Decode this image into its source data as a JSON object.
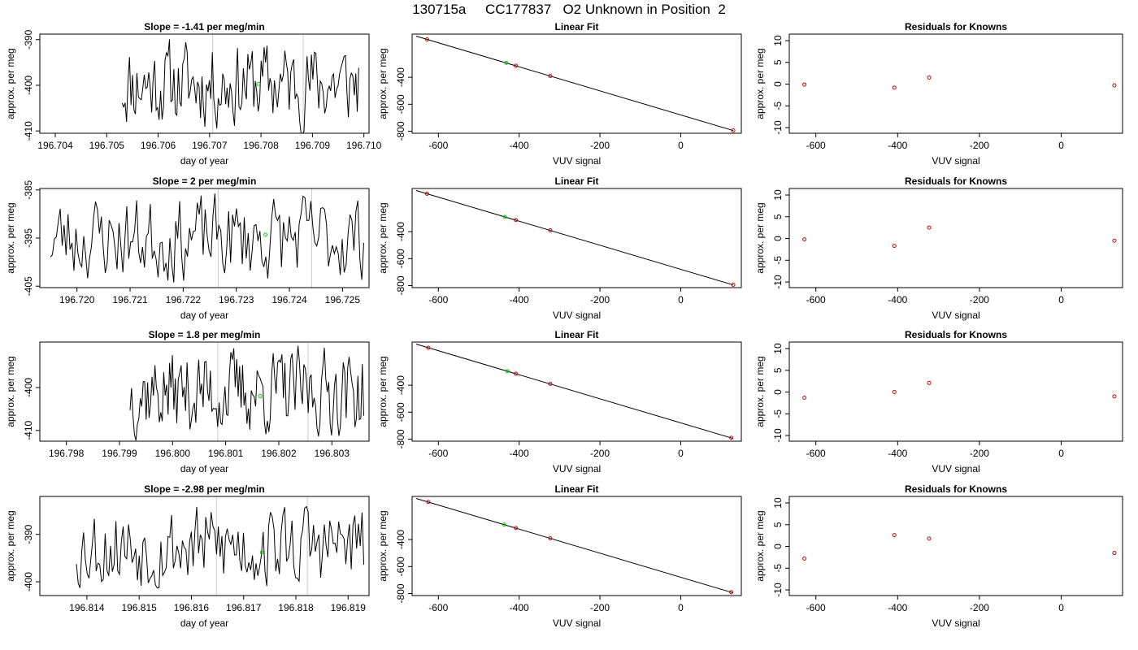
{
  "page": {
    "title": "130715a     CC177837   O2 Unknown in Position  2"
  },
  "colors": {
    "trace": "#000000",
    "unknown_point": "#00cc00",
    "known_point": "#cc0000",
    "marker_line": "#cccccc",
    "fit_line": "#000000"
  },
  "chart_data": [
    {
      "type": "line",
      "title": "Slope =  -1.41  per meg/min",
      "xlabel": "day of year",
      "ylabel": "approx. per meg",
      "xlim": [
        196.7037,
        196.7101
      ],
      "ylim": [
        -410.5,
        -388.8
      ],
      "xticks": [
        196.704,
        196.705,
        196.706,
        196.707,
        196.708,
        196.709,
        196.71
      ],
      "xtick_labels": [
        "196.704",
        "196.705",
        "196.706",
        "196.707",
        "196.708",
        "196.709",
        "196.710"
      ],
      "yticks": [
        -390,
        -400,
        -410
      ],
      "ytick_labels": [
        "-390",
        "-400",
        "-410"
      ],
      "vlines": [
        196.70706,
        196.70882
      ],
      "trace_start": 196.7053,
      "trace_end": 196.7099,
      "seed": 11,
      "unknown_point": {
        "x": 196.70795,
        "y": -399.7
      }
    },
    {
      "type": "scatter",
      "title": "Linear Fit",
      "xlabel": "VUV signal",
      "ylabel": "approx. per meg",
      "xlim": [
        -665,
        150
      ],
      "ylim": [
        -815,
        -80
      ],
      "xticks": [
        -600,
        -400,
        -200,
        0
      ],
      "xtick_labels": [
        "-600",
        "-400",
        "-200",
        "0"
      ],
      "yticks": [
        -400,
        -600,
        -800
      ],
      "ytick_labels": [
        "-400",
        "-600",
        "-800"
      ],
      "fit_line": [
        [
          -655,
          -95
        ],
        [
          130,
          -795
        ]
      ],
      "known_points": [
        {
          "x": -628,
          "y": -119
        },
        {
          "x": -408,
          "y": -314
        },
        {
          "x": -323,
          "y": -390
        },
        {
          "x": 130,
          "y": -794
        }
      ],
      "unknown_point": {
        "x": -432,
        "y": -293
      }
    },
    {
      "type": "scatter",
      "title": "Residuals for Knowns",
      "xlabel": "VUV signal",
      "ylabel": "approx. per meg",
      "xlim": [
        -665,
        150
      ],
      "ylim": [
        -11.3,
        11.5
      ],
      "xticks": [
        -600,
        -400,
        -200,
        0
      ],
      "xtick_labels": [
        "-600",
        "-400",
        "-200",
        "0"
      ],
      "yticks": [
        10,
        5,
        0,
        -5,
        -10
      ],
      "ytick_labels": [
        "10",
        "5",
        "0",
        "-5",
        "-10"
      ],
      "known_points": [
        {
          "x": -628,
          "y": -0.1
        },
        {
          "x": -408,
          "y": -0.8
        },
        {
          "x": -323,
          "y": 1.5
        },
        {
          "x": 130,
          "y": -0.3
        }
      ]
    },
    {
      "type": "line",
      "title": "Slope =  2  per meg/min",
      "xlabel": "day of year",
      "ylabel": "approx. per meg",
      "xlim": [
        196.7193,
        196.7255
      ],
      "ylim": [
        -405.3,
        -384.7
      ],
      "xticks": [
        196.72,
        196.721,
        196.722,
        196.723,
        196.724,
        196.725
      ],
      "xtick_labels": [
        "196.720",
        "196.721",
        "196.722",
        "196.723",
        "196.724",
        "196.725"
      ],
      "yticks": [
        -385,
        -395,
        -405
      ],
      "ytick_labels": [
        "-385",
        "-395",
        "-405"
      ],
      "vlines": [
        196.72266,
        196.72442
      ],
      "trace_start": 196.7195,
      "trace_end": 196.7254,
      "seed": 23,
      "unknown_point": {
        "x": 196.72355,
        "y": -394.3
      }
    },
    {
      "type": "scatter",
      "title": "Linear Fit",
      "xlabel": "VUV signal",
      "ylabel": "approx. per meg",
      "xlim": [
        -665,
        150
      ],
      "ylim": [
        -815,
        -80
      ],
      "xticks": [
        -600,
        -400,
        -200,
        0
      ],
      "xtick_labels": [
        "-600",
        "-400",
        "-200",
        "0"
      ],
      "yticks": [
        -400,
        -600,
        -800
      ],
      "ytick_labels": [
        "-400",
        "-600",
        "-800"
      ],
      "fit_line": [
        [
          -655,
          -95
        ],
        [
          130,
          -795
        ]
      ],
      "known_points": [
        {
          "x": -628,
          "y": -119
        },
        {
          "x": -408,
          "y": -314
        },
        {
          "x": -323,
          "y": -390
        },
        {
          "x": 130,
          "y": -794
        }
      ],
      "unknown_point": {
        "x": -435,
        "y": -291
      }
    },
    {
      "type": "scatter",
      "title": "Residuals for Knowns",
      "xlabel": "VUV signal",
      "ylabel": "approx. per meg",
      "xlim": [
        -665,
        150
      ],
      "ylim": [
        -11.3,
        11.5
      ],
      "xticks": [
        -600,
        -400,
        -200,
        0
      ],
      "xtick_labels": [
        "-600",
        "-400",
        "-200",
        "0"
      ],
      "yticks": [
        10,
        5,
        0,
        -5,
        -10
      ],
      "ytick_labels": [
        "10",
        "5",
        "0",
        "-5",
        "-10"
      ],
      "known_points": [
        {
          "x": -628,
          "y": -0.2
        },
        {
          "x": -408,
          "y": -1.7
        },
        {
          "x": -323,
          "y": 2.5
        },
        {
          "x": 130,
          "y": -0.5
        }
      ]
    },
    {
      "type": "line",
      "title": "Slope =  1.8  per meg/min",
      "xlabel": "day of year",
      "ylabel": "approx. per meg",
      "xlim": [
        196.7975,
        196.8037
      ],
      "ylim": [
        -412.5,
        -389.4
      ],
      "xticks": [
        196.798,
        196.799,
        196.8,
        196.801,
        196.802,
        196.803
      ],
      "xtick_labels": [
        "196.798",
        "196.799",
        "196.800",
        "196.801",
        "196.802",
        "196.803"
      ],
      "yticks": [
        -400,
        -410
      ],
      "ytick_labels": [
        "-400",
        "-410"
      ],
      "vlines": [
        196.80085,
        196.80255
      ],
      "trace_start": 196.7992,
      "trace_end": 196.8036,
      "seed": 37,
      "unknown_point": {
        "x": 196.80165,
        "y": -402.0
      }
    },
    {
      "type": "scatter",
      "title": "Linear Fit",
      "xlabel": "VUV signal",
      "ylabel": "approx. per meg",
      "xlim": [
        -665,
        150
      ],
      "ylim": [
        -815,
        -80
      ],
      "xticks": [
        -600,
        -400,
        -200,
        0
      ],
      "xtick_labels": [
        "-600",
        "-400",
        "-200",
        "0"
      ],
      "yticks": [
        -400,
        -600,
        -800
      ],
      "ytick_labels": [
        "-400",
        "-600",
        "-800"
      ],
      "fit_line": [
        [
          -655,
          -95
        ],
        [
          130,
          -795
        ]
      ],
      "known_points": [
        {
          "x": -625,
          "y": -122
        },
        {
          "x": -408,
          "y": -315
        },
        {
          "x": -323,
          "y": -390
        },
        {
          "x": 125,
          "y": -790
        }
      ],
      "unknown_point": {
        "x": -429,
        "y": -296
      }
    },
    {
      "type": "scatter",
      "title": "Residuals for Knowns",
      "xlabel": "VUV signal",
      "ylabel": "approx. per meg",
      "xlim": [
        -665,
        150
      ],
      "ylim": [
        -11.3,
        11.5
      ],
      "xticks": [
        -600,
        -400,
        -200,
        0
      ],
      "xtick_labels": [
        "-600",
        "-400",
        "-200",
        "0"
      ],
      "yticks": [
        10,
        5,
        0,
        -5,
        -10
      ],
      "ytick_labels": [
        "10",
        "5",
        "0",
        "-5",
        "-10"
      ],
      "known_points": [
        {
          "x": -628,
          "y": -1.3
        },
        {
          "x": -408,
          "y": 0.0
        },
        {
          "x": -323,
          "y": 2.1
        },
        {
          "x": 130,
          "y": -1.0
        }
      ]
    },
    {
      "type": "line",
      "title": "Slope =  -2.98  per meg/min",
      "xlabel": "day of year",
      "ylabel": "approx. per meg",
      "xlim": [
        196.8131,
        196.8194
      ],
      "ylim": [
        -402.9,
        -382.0
      ],
      "xticks": [
        196.814,
        196.815,
        196.816,
        196.817,
        196.818,
        196.819
      ],
      "xtick_labels": [
        "196.814",
        "196.815",
        "196.816",
        "196.817",
        "196.818",
        "196.819"
      ],
      "yticks": [
        -390,
        -400
      ],
      "ytick_labels": [
        "-390",
        "-400"
      ],
      "vlines": [
        196.81648,
        196.81822
      ],
      "trace_start": 196.8138,
      "trace_end": 196.8193,
      "seed": 53,
      "unknown_point": {
        "x": 196.81735,
        "y": -393.8
      }
    },
    {
      "type": "scatter",
      "title": "Linear Fit",
      "xlabel": "VUV signal",
      "ylabel": "approx. per meg",
      "xlim": [
        -665,
        150
      ],
      "ylim": [
        -815,
        -80
      ],
      "xticks": [
        -600,
        -400,
        -200,
        0
      ],
      "xtick_labels": [
        "-600",
        "-400",
        "-200",
        "0"
      ],
      "yticks": [
        -400,
        -600,
        -800
      ],
      "ytick_labels": [
        "-400",
        "-600",
        "-800"
      ],
      "fit_line": [
        [
          -655,
          -95
        ],
        [
          130,
          -795
        ]
      ],
      "known_points": [
        {
          "x": -625,
          "y": -121
        },
        {
          "x": -408,
          "y": -314
        },
        {
          "x": -323,
          "y": -390
        },
        {
          "x": 125,
          "y": -790
        }
      ],
      "unknown_point": {
        "x": -437,
        "y": -289
      }
    },
    {
      "type": "scatter",
      "title": "Residuals for Knowns",
      "xlabel": "VUV signal",
      "ylabel": "approx. per meg",
      "xlim": [
        -665,
        150
      ],
      "ylim": [
        -11.3,
        11.5
      ],
      "xticks": [
        -600,
        -400,
        -200,
        0
      ],
      "xtick_labels": [
        "-600",
        "-400",
        "-200",
        "0"
      ],
      "yticks": [
        10,
        5,
        0,
        -5,
        -10
      ],
      "ytick_labels": [
        "10",
        "5",
        "0",
        "-5",
        "-10"
      ],
      "known_points": [
        {
          "x": -628,
          "y": -2.8
        },
        {
          "x": -408,
          "y": 2.6
        },
        {
          "x": -323,
          "y": 1.8
        },
        {
          "x": 130,
          "y": -1.5
        }
      ]
    }
  ]
}
